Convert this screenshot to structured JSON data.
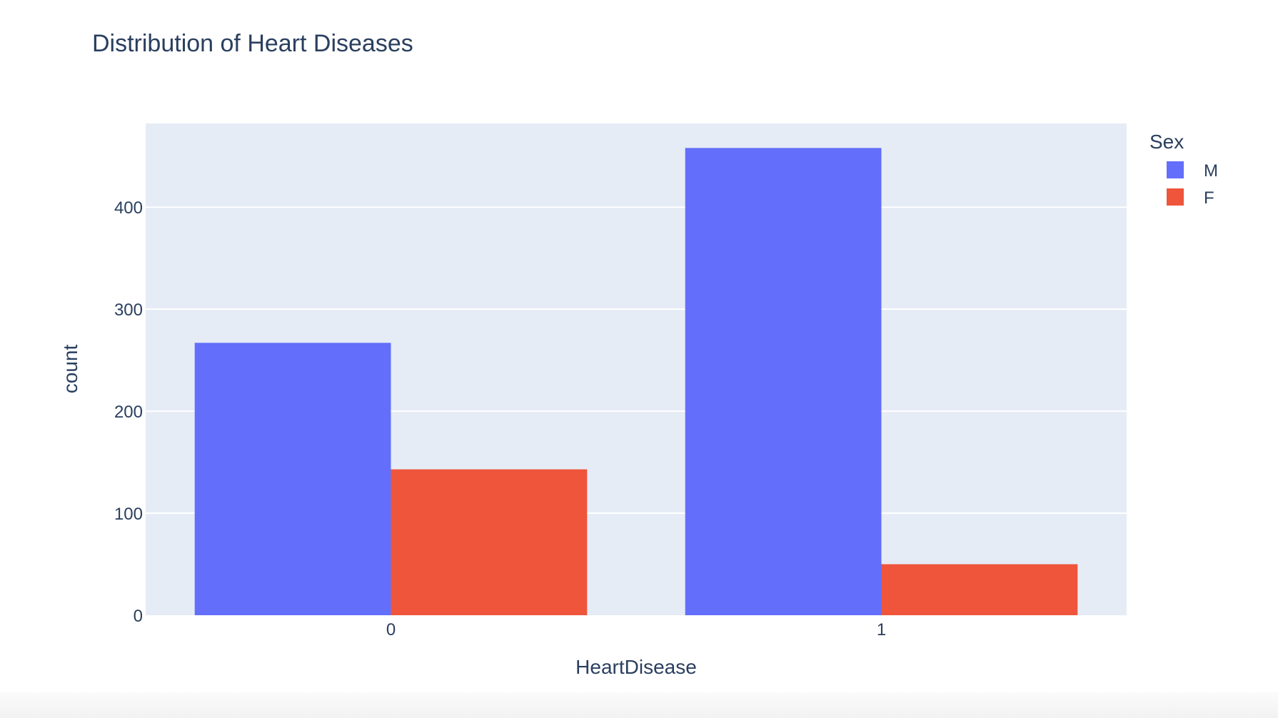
{
  "chart_data": {
    "type": "bar",
    "title": "Distribution of Heart Diseases",
    "xlabel": "HeartDisease",
    "ylabel": "count",
    "categories": [
      "0",
      "1"
    ],
    "series": [
      {
        "name": "M",
        "values": [
          267,
          458
        ],
        "color": "#636efa"
      },
      {
        "name": "F",
        "values": [
          143,
          50
        ],
        "color": "#ef553b"
      }
    ],
    "ylim": [
      0,
      482
    ],
    "yticks": [
      0,
      100,
      200,
      300,
      400
    ],
    "ytick_labels": [
      "0",
      "100",
      "200",
      "300",
      "400"
    ],
    "legend_title": "Sex",
    "legend_position": "right",
    "grid": true,
    "barmode": "group"
  },
  "colors": {
    "plot_background": "#e5ecf6",
    "gridline": "#ffffff",
    "text": "#2a3f5f",
    "bar_m": "#636efa",
    "bar_f": "#ef553b"
  }
}
